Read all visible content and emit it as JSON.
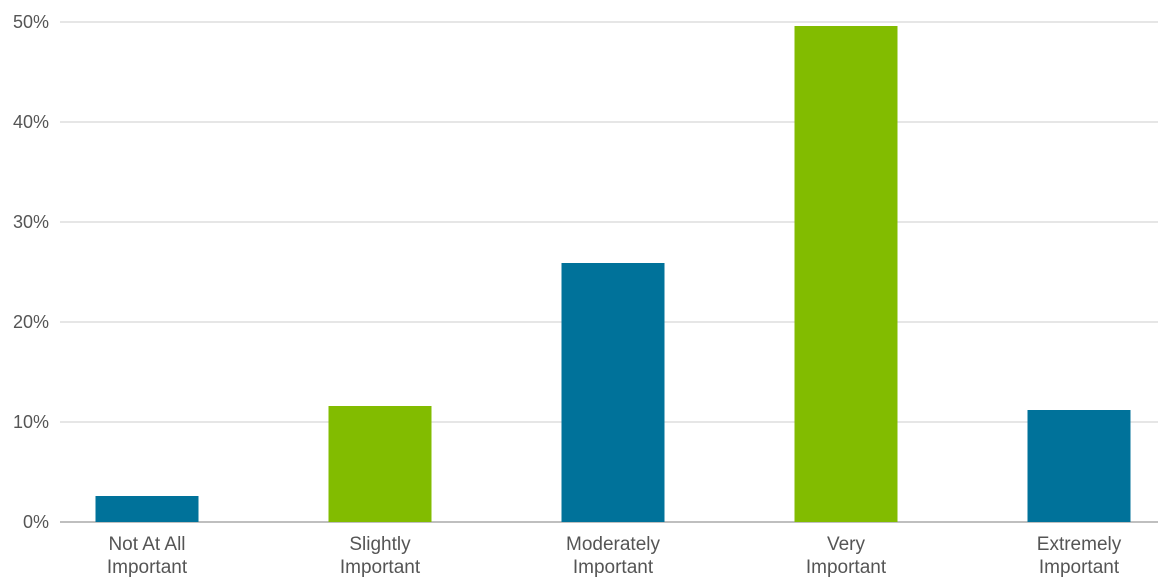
{
  "chart_data": {
    "type": "bar",
    "title": "",
    "xlabel": "",
    "ylabel": "",
    "categories": [
      [
        "Not At All",
        "Important"
      ],
      [
        "Slightly",
        "Important"
      ],
      [
        "Moderately",
        "Important"
      ],
      [
        "Very",
        "Important"
      ],
      [
        "Extremely",
        "Important"
      ]
    ],
    "values": [
      2.6,
      11.6,
      25.9,
      49.6,
      11.2
    ],
    "bar_colors": [
      "#00729a",
      "#82bc00",
      "#00729a",
      "#82bc00",
      "#00729a"
    ],
    "ylim": [
      0,
      50
    ],
    "yticks": [
      0,
      10,
      20,
      30,
      40,
      50
    ],
    "ytick_labels": [
      "0%",
      "10%",
      "20%",
      "30%",
      "40%",
      "50%"
    ],
    "grid": true,
    "grid_color": "#cccccc",
    "axis_line_color": "#999999",
    "legend": "none"
  }
}
